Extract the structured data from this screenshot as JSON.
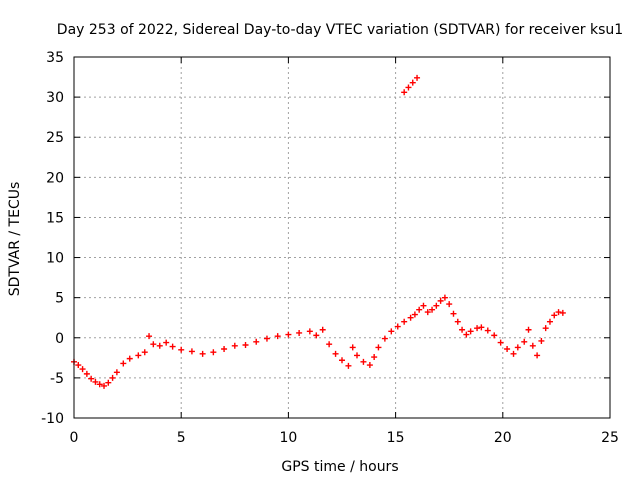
{
  "chart_data": {
    "type": "scatter",
    "title": "Day 253 of 2022, Sidereal Day-to-day VTEC variation (SDTVAR) for receiver ksu1",
    "xlabel": "GPS time / hours",
    "ylabel": "SDTVAR / TECUs",
    "xlim": [
      0,
      25
    ],
    "ylim": [
      -10,
      35
    ],
    "xticks": [
      0,
      5,
      10,
      15,
      20,
      25
    ],
    "yticks": [
      -10,
      -5,
      0,
      5,
      10,
      15,
      20,
      25,
      30,
      35
    ],
    "grid": true,
    "legend": "none",
    "marker": "+",
    "colors": {
      "series": "#ff0000",
      "axes": "#000000",
      "grid": "#a0a0a0"
    },
    "series": [
      {
        "name": "SDTVAR",
        "points": [
          [
            0.0,
            -3.0
          ],
          [
            0.2,
            -3.4
          ],
          [
            0.4,
            -3.9
          ],
          [
            0.6,
            -4.5
          ],
          [
            0.8,
            -5.1
          ],
          [
            1.0,
            -5.5
          ],
          [
            1.2,
            -5.8
          ],
          [
            1.4,
            -6.0
          ],
          [
            1.6,
            -5.6
          ],
          [
            1.8,
            -5.0
          ],
          [
            2.0,
            -4.3
          ],
          [
            2.3,
            -3.2
          ],
          [
            2.6,
            -2.6
          ],
          [
            3.0,
            -2.2
          ],
          [
            3.3,
            -1.8
          ],
          [
            3.5,
            0.2
          ],
          [
            3.7,
            -0.8
          ],
          [
            4.0,
            -1.0
          ],
          [
            4.3,
            -0.6
          ],
          [
            4.6,
            -1.1
          ],
          [
            5.0,
            -1.5
          ],
          [
            5.5,
            -1.7
          ],
          [
            6.0,
            -2.0
          ],
          [
            6.5,
            -1.8
          ],
          [
            7.0,
            -1.4
          ],
          [
            7.5,
            -1.0
          ],
          [
            8.0,
            -0.9
          ],
          [
            8.5,
            -0.5
          ],
          [
            9.0,
            -0.1
          ],
          [
            9.5,
            0.2
          ],
          [
            10.0,
            0.4
          ],
          [
            10.5,
            0.6
          ],
          [
            11.0,
            0.8
          ],
          [
            11.3,
            0.3
          ],
          [
            11.6,
            1.0
          ],
          [
            11.9,
            -0.8
          ],
          [
            12.2,
            -2.0
          ],
          [
            12.5,
            -2.8
          ],
          [
            12.8,
            -3.5
          ],
          [
            13.0,
            -1.2
          ],
          [
            13.2,
            -2.2
          ],
          [
            13.5,
            -3.0
          ],
          [
            13.8,
            -3.4
          ],
          [
            14.0,
            -2.4
          ],
          [
            14.2,
            -1.2
          ],
          [
            14.5,
            -0.1
          ],
          [
            14.8,
            0.8
          ],
          [
            15.1,
            1.4
          ],
          [
            15.4,
            2.0
          ],
          [
            15.7,
            2.5
          ],
          [
            15.9,
            2.9
          ],
          [
            16.1,
            3.5
          ],
          [
            16.3,
            4.0
          ],
          [
            16.5,
            3.2
          ],
          [
            16.7,
            3.5
          ],
          [
            16.9,
            4.0
          ],
          [
            17.1,
            4.6
          ],
          [
            17.3,
            5.0
          ],
          [
            17.5,
            4.2
          ],
          [
            17.7,
            3.0
          ],
          [
            17.9,
            2.0
          ],
          [
            18.1,
            1.0
          ],
          [
            18.3,
            0.4
          ],
          [
            18.5,
            0.8
          ],
          [
            18.8,
            1.2
          ],
          [
            19.0,
            1.3
          ],
          [
            19.3,
            0.9
          ],
          [
            19.6,
            0.3
          ],
          [
            19.9,
            -0.6
          ],
          [
            20.2,
            -1.4
          ],
          [
            20.5,
            -2.0
          ],
          [
            20.7,
            -1.2
          ],
          [
            21.0,
            -0.5
          ],
          [
            21.2,
            1.0
          ],
          [
            21.4,
            -1.0
          ],
          [
            21.6,
            -2.2
          ],
          [
            21.8,
            -0.4
          ],
          [
            22.0,
            1.2
          ],
          [
            22.2,
            2.0
          ],
          [
            22.4,
            2.8
          ],
          [
            22.6,
            3.2
          ],
          [
            22.8,
            3.1
          ],
          [
            15.4,
            30.6
          ],
          [
            15.6,
            31.2
          ],
          [
            15.8,
            31.8
          ],
          [
            16.0,
            32.4
          ]
        ]
      }
    ]
  }
}
